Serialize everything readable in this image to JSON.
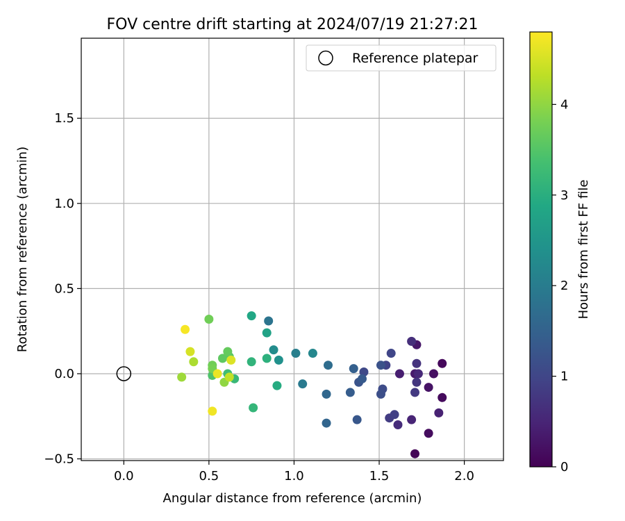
{
  "chart_data": {
    "type": "scatter",
    "title": "FOV centre drift starting at 2024/07/19 21:27:21",
    "xlabel": "Angular distance from reference (arcmin)",
    "ylabel": "Rotation from reference (arcmin)",
    "xlim": [
      -0.25,
      2.23
    ],
    "ylim": [
      -0.51,
      1.97
    ],
    "x_ticks": [
      0.0,
      0.5,
      1.0,
      1.5,
      2.0
    ],
    "x_tick_labels": [
      "0.0",
      "0.5",
      "1.0",
      "1.5",
      "2.0"
    ],
    "y_ticks": [
      -0.5,
      0.0,
      0.5,
      1.0,
      1.5
    ],
    "y_tick_labels": [
      "−0.5",
      "0.0",
      "0.5",
      "1.0",
      "1.5"
    ],
    "grid": true,
    "legend": {
      "position": "top-right",
      "entries": [
        {
          "label": "Reference platepar",
          "marker": "open-circle",
          "x": 0.0,
          "y": 0.0
        }
      ]
    },
    "colorbar": {
      "label": "Hours from first FF file",
      "colormap": "viridis",
      "range": [
        0,
        4.8
      ],
      "ticks": [
        0,
        1,
        2,
        3,
        4
      ],
      "tick_labels": [
        "0",
        "1",
        "2",
        "3",
        "4"
      ]
    },
    "points": [
      {
        "x": 1.71,
        "y": -0.47,
        "hours": 0.05
      },
      {
        "x": 1.87,
        "y": 0.06,
        "hours": 0.1
      },
      {
        "x": 1.87,
        "y": -0.14,
        "hours": 0.12
      },
      {
        "x": 1.79,
        "y": -0.35,
        "hours": 0.15
      },
      {
        "x": 1.82,
        "y": 0.0,
        "hours": 0.2
      },
      {
        "x": 1.79,
        "y": -0.08,
        "hours": 0.25
      },
      {
        "x": 1.72,
        "y": 0.17,
        "hours": 0.3
      },
      {
        "x": 1.71,
        "y": 0.0,
        "hours": 0.35
      },
      {
        "x": 1.62,
        "y": 0.0,
        "hours": 0.4
      },
      {
        "x": 1.85,
        "y": -0.23,
        "hours": 0.45
      },
      {
        "x": 1.69,
        "y": -0.27,
        "hours": 0.5
      },
      {
        "x": 1.73,
        "y": 0.0,
        "hours": 0.55
      },
      {
        "x": 1.61,
        "y": -0.3,
        "hours": 0.6
      },
      {
        "x": 1.69,
        "y": 0.19,
        "hours": 0.65
      },
      {
        "x": 1.72,
        "y": 0.06,
        "hours": 0.7
      },
      {
        "x": 1.72,
        "y": -0.05,
        "hours": 0.75
      },
      {
        "x": 1.71,
        "y": -0.11,
        "hours": 0.8
      },
      {
        "x": 1.56,
        "y": -0.26,
        "hours": 0.85
      },
      {
        "x": 1.59,
        "y": -0.24,
        "hours": 0.9
      },
      {
        "x": 1.54,
        "y": 0.05,
        "hours": 0.95
      },
      {
        "x": 1.57,
        "y": 0.12,
        "hours": 1.0
      },
      {
        "x": 1.41,
        "y": 0.01,
        "hours": 1.05
      },
      {
        "x": 1.52,
        "y": -0.09,
        "hours": 1.1
      },
      {
        "x": 1.51,
        "y": -0.12,
        "hours": 1.15
      },
      {
        "x": 1.51,
        "y": 0.05,
        "hours": 1.2
      },
      {
        "x": 1.38,
        "y": -0.05,
        "hours": 1.25
      },
      {
        "x": 1.37,
        "y": -0.27,
        "hours": 1.3
      },
      {
        "x": 1.4,
        "y": -0.03,
        "hours": 1.35
      },
      {
        "x": 1.33,
        "y": -0.11,
        "hours": 1.4
      },
      {
        "x": 1.35,
        "y": 0.03,
        "hours": 1.45
      },
      {
        "x": 1.19,
        "y": -0.29,
        "hours": 1.55
      },
      {
        "x": 1.19,
        "y": -0.12,
        "hours": 1.6
      },
      {
        "x": 1.2,
        "y": 0.05,
        "hours": 1.7
      },
      {
        "x": 0.85,
        "y": 0.31,
        "hours": 1.85
      },
      {
        "x": 1.05,
        "y": -0.06,
        "hours": 1.95
      },
      {
        "x": 1.01,
        "y": 0.12,
        "hours": 2.05
      },
      {
        "x": 1.11,
        "y": 0.12,
        "hours": 2.2
      },
      {
        "x": 0.88,
        "y": 0.14,
        "hours": 2.3
      },
      {
        "x": 0.91,
        "y": 0.08,
        "hours": 2.4
      },
      {
        "x": 0.84,
        "y": 0.24,
        "hours": 2.75
      },
      {
        "x": 0.75,
        "y": 0.34,
        "hours": 2.85
      },
      {
        "x": 0.9,
        "y": -0.07,
        "hours": 2.95
      },
      {
        "x": 0.84,
        "y": 0.09,
        "hours": 3.05
      },
      {
        "x": 0.75,
        "y": 0.07,
        "hours": 3.1
      },
      {
        "x": 0.76,
        "y": -0.2,
        "hours": 3.15
      },
      {
        "x": 0.65,
        "y": -0.03,
        "hours": 3.2
      },
      {
        "x": 0.61,
        "y": 0.0,
        "hours": 3.3
      },
      {
        "x": 0.52,
        "y": -0.01,
        "hours": 3.45
      },
      {
        "x": 0.62,
        "y": 0.1,
        "hours": 3.55
      },
      {
        "x": 0.58,
        "y": 0.09,
        "hours": 3.6
      },
      {
        "x": 0.61,
        "y": 0.13,
        "hours": 3.65
      },
      {
        "x": 0.52,
        "y": 0.05,
        "hours": 3.75
      },
      {
        "x": 0.5,
        "y": 0.32,
        "hours": 3.75
      },
      {
        "x": 0.52,
        "y": 0.03,
        "hours": 3.8
      },
      {
        "x": 0.59,
        "y": -0.05,
        "hours": 4.0
      },
      {
        "x": 0.34,
        "y": -0.02,
        "hours": 4.1
      },
      {
        "x": 0.41,
        "y": 0.07,
        "hours": 4.2
      },
      {
        "x": 0.62,
        "y": -0.02,
        "hours": 4.35
      },
      {
        "x": 0.39,
        "y": 0.13,
        "hours": 4.5
      },
      {
        "x": 0.63,
        "y": 0.08,
        "hours": 4.55
      },
      {
        "x": 0.55,
        "y": 0.0,
        "hours": 4.65
      },
      {
        "x": 0.52,
        "y": -0.22,
        "hours": 4.7
      },
      {
        "x": 0.36,
        "y": 0.26,
        "hours": 4.75
      }
    ]
  }
}
